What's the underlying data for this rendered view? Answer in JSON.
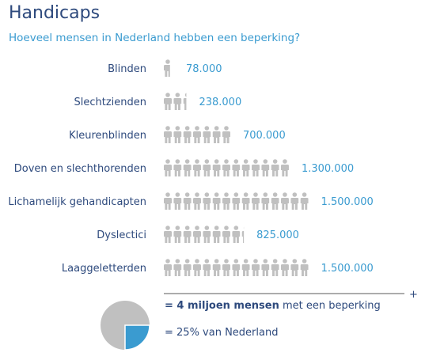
{
  "chart_data": {
    "type": "bar",
    "title": "Handicaps",
    "subtitle": "Hoeveel mensen in Nederland hebben een beperking?",
    "unit_per_icon": 100000,
    "categories": [
      "Blinden",
      "Slechtzienden",
      "Kleurenblinden",
      "Doven en slechthorenden",
      "Lichamelijk gehandicapten",
      "Dyslectici",
      "Laaggeletterden"
    ],
    "values": [
      78000,
      238000,
      700000,
      1300000,
      1500000,
      825000,
      1500000
    ],
    "value_labels": [
      "78.000",
      "238.000",
      "700.000",
      "1.300.000",
      "1.500.000",
      "825.000",
      "1.500.000"
    ],
    "colors": {
      "title": "#2e4a7d",
      "accent": "#3a9bd0",
      "icon": "#c0c0c0",
      "pie": "#3a9bd0"
    }
  },
  "summary": {
    "plus": "+",
    "total_prefix": "= 4 miljoen mensen",
    "total_suffix": " met een beperking",
    "share_text": "= 25% van Nederland",
    "share_fraction": 0.25
  }
}
